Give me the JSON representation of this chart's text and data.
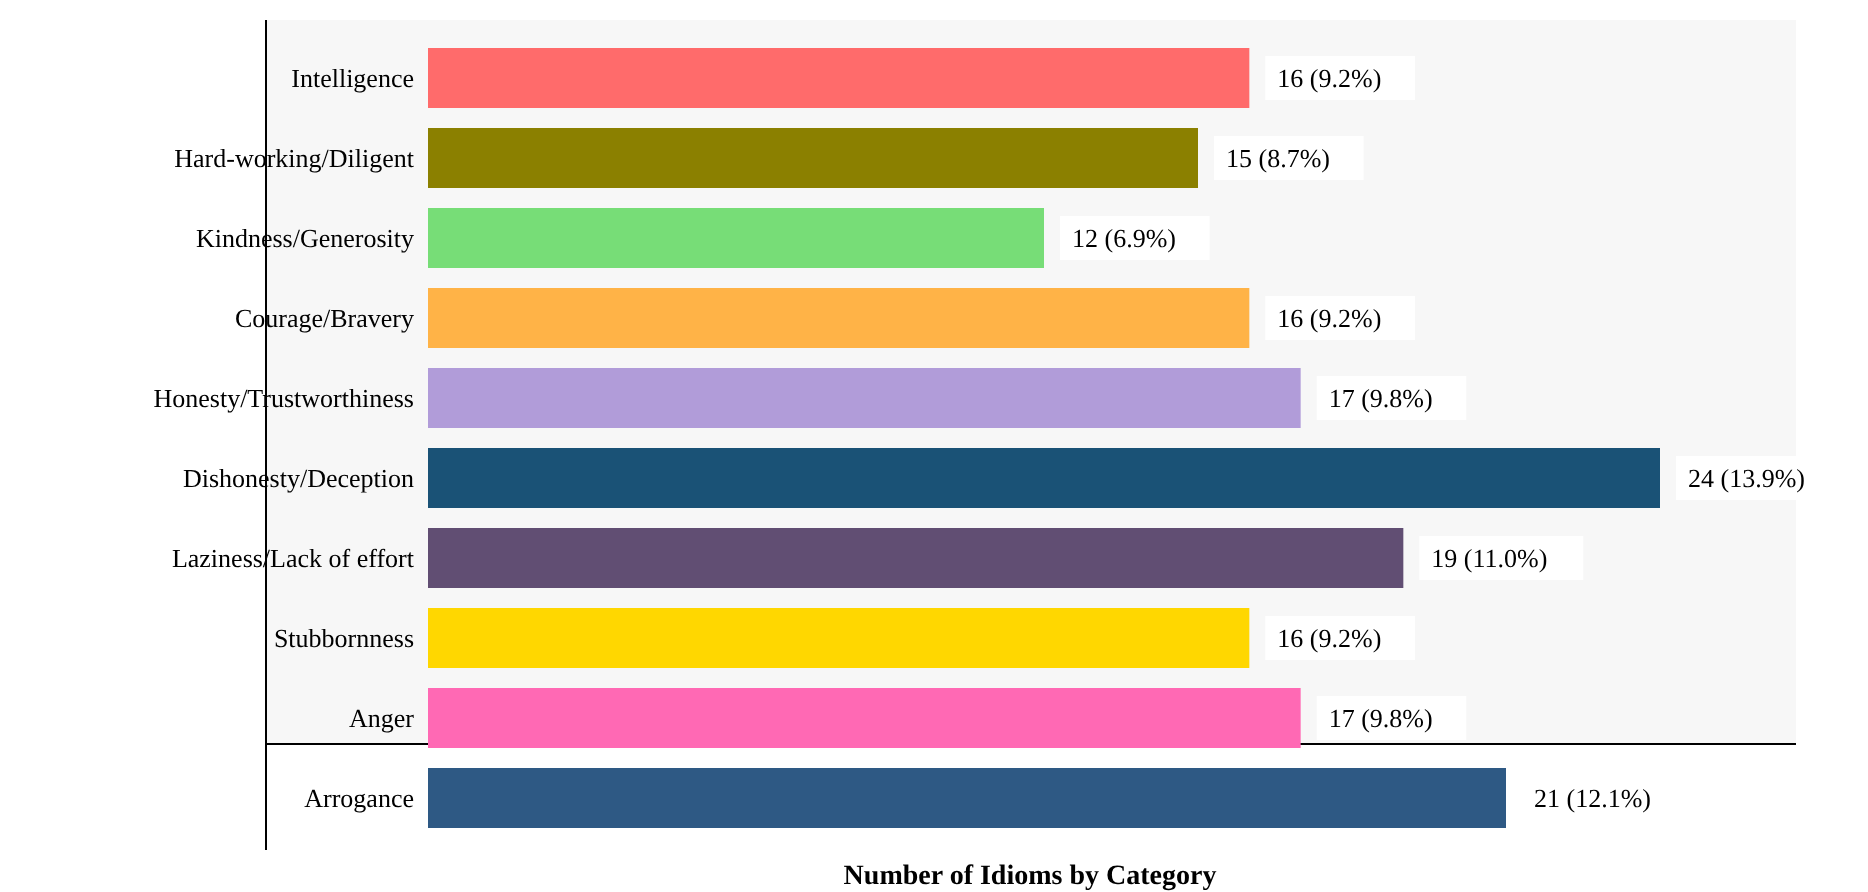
{
  "chart_data": {
    "type": "bar",
    "orientation": "horizontal",
    "xlabel": "Number of Idioms by Category",
    "categories": [
      "Intelligence",
      "Hard-working/Diligent",
      "Kindness/Generosity",
      "Courage/Bravery",
      "Honesty/Trustworthiness",
      "Dishonesty/Deception",
      "Laziness/Lack of effort",
      "Stubbornness",
      "Anger",
      "Arrogance"
    ],
    "values": [
      16,
      15,
      12,
      16,
      17,
      24,
      19,
      16,
      17,
      21
    ],
    "colors": [
      "#ff6b6b",
      "#8b8000",
      "#77dd77",
      "#ffb347",
      "#b19cd9",
      "#1a5276",
      "#614e73",
      "#ffd700",
      "#ff69b4",
      "#2e5984"
    ],
    "value_labels": [
      "16 (9.2%)",
      "15 (8.7%)",
      "12 (6.9%)",
      "16 (9.2%)",
      "17 (9.8%)",
      "24 (13.9%)",
      "19 (11.0%)",
      "16 (9.2%)",
      "17 (9.8%)",
      "21 (12.1%)"
    ]
  }
}
